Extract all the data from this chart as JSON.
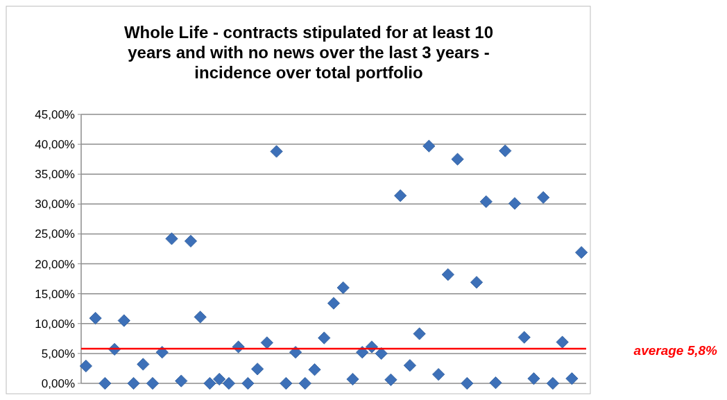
{
  "chart_data": {
    "type": "scatter",
    "title": "Whole Life - contracts stipulated for at least 10 years and with no news over the last 3 years - incidence over total portfolio",
    "categories": [
      null,
      null,
      null,
      null,
      null,
      null,
      null,
      null,
      null,
      null,
      null,
      null,
      null,
      null,
      null,
      null,
      null,
      null,
      null,
      null,
      null,
      null,
      null,
      null,
      null,
      null,
      null,
      null,
      null,
      null,
      null,
      null,
      null,
      null,
      null,
      null,
      null,
      null,
      null,
      null,
      null,
      null,
      null,
      null,
      null,
      null,
      null,
      null,
      null,
      null,
      null,
      null,
      null
    ],
    "series": [
      {
        "color": "#3d70b8",
        "values": [
          2.9,
          10.9,
          0,
          5.7,
          10.5,
          0,
          3.2,
          0,
          5.2,
          24.2,
          0.4,
          23.8,
          11.1,
          0,
          0.7,
          0,
          6.1,
          0,
          2.4,
          6.8,
          38.8,
          0,
          5.2,
          0,
          2.3,
          7.6,
          13.4,
          16.0,
          0.7,
          5.2,
          6.1,
          5.0,
          0.6,
          31.4,
          3.0,
          8.3,
          39.7,
          1.5,
          18.2,
          37.5,
          0,
          16.9,
          30.4,
          0.1,
          38.9,
          30.1,
          7.7,
          0.8,
          31.1,
          0,
          6.9,
          0.8,
          21.9
        ]
      }
    ],
    "ylim": [
      0,
      45
    ],
    "yticks": [
      {
        "value": 0,
        "label": "0,00%"
      },
      {
        "value": 5,
        "label": "5,00%"
      },
      {
        "value": 10,
        "label": "10,00%"
      },
      {
        "value": 15,
        "label": "15,00%"
      },
      {
        "value": 20,
        "label": "20,00%"
      },
      {
        "value": 25,
        "label": "25,00%"
      },
      {
        "value": 30,
        "label": "30,00%"
      },
      {
        "value": 35,
        "label": "35,00%"
      },
      {
        "value": 40,
        "label": "40,00%"
      },
      {
        "value": 45,
        "label": "45,00%"
      }
    ],
    "ref_lines": [
      {
        "axis": "y",
        "value": 5.8,
        "label": "average 5,8%",
        "color": "#ff0000"
      }
    ],
    "grid": "y",
    "marker": "diamond",
    "tick_labels": "y"
  }
}
